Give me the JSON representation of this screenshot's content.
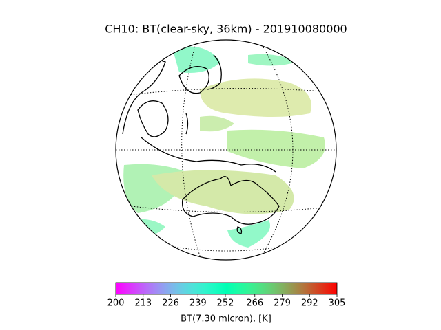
{
  "title": "CH10: BT(clear-sky, 36km) - 201910080000",
  "colorbar": {
    "label": "BT(7.30 micron), [K]",
    "colormap": "rainbow",
    "lim": [
      200,
      305
    ],
    "ticks": [
      200,
      213,
      226,
      239,
      252,
      266,
      279,
      292,
      305
    ]
  }
}
